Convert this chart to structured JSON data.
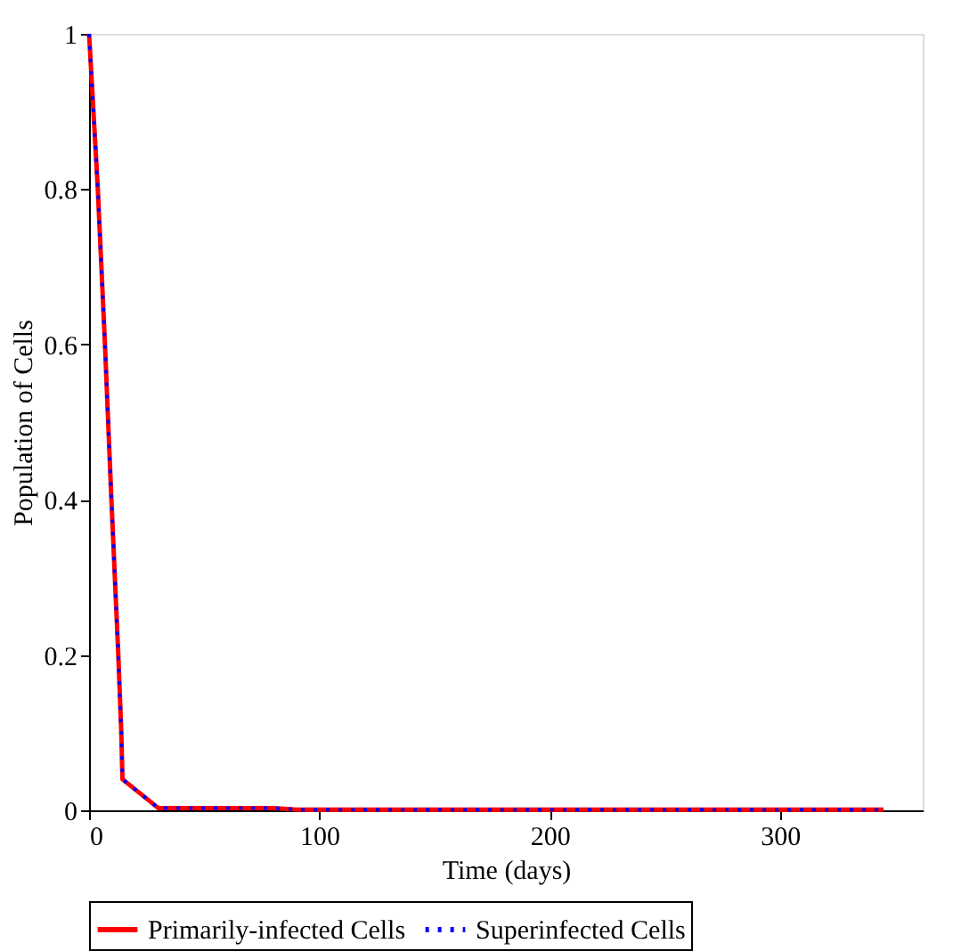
{
  "chart_data": {
    "type": "line",
    "xlabel": "Time (days)",
    "ylabel": "Population of Cells",
    "x": [
      0,
      3.8,
      6.9,
      9.7,
      12.7,
      14,
      14.5,
      25,
      30,
      80,
      90,
      345
    ],
    "series": [
      {
        "name": "Primarily-infected Cells",
        "color": "#ff0000",
        "line_style": "solid",
        "values": [
          1,
          0.8,
          0.6,
          0.4,
          0.2,
          0.1,
          0.04,
          0.015,
          0.003,
          0.003,
          0.001,
          0.001
        ]
      },
      {
        "name": "Superinfected Cells",
        "color": "#0000ff",
        "line_style": "dotted",
        "values": [
          1,
          0.8,
          0.6,
          0.4,
          0.2,
          0.1,
          0.04,
          0.015,
          0.003,
          0.003,
          0.001,
          0.001
        ]
      }
    ],
    "xlim": [
      0,
      362
    ],
    "xticks": [
      0,
      100,
      200,
      300
    ],
    "ylim": [
      0,
      1
    ],
    "yticks": [
      0,
      0.2,
      0.4,
      0.6,
      0.8,
      1
    ],
    "grid": false,
    "legend": "bottom",
    "marker": "none"
  }
}
